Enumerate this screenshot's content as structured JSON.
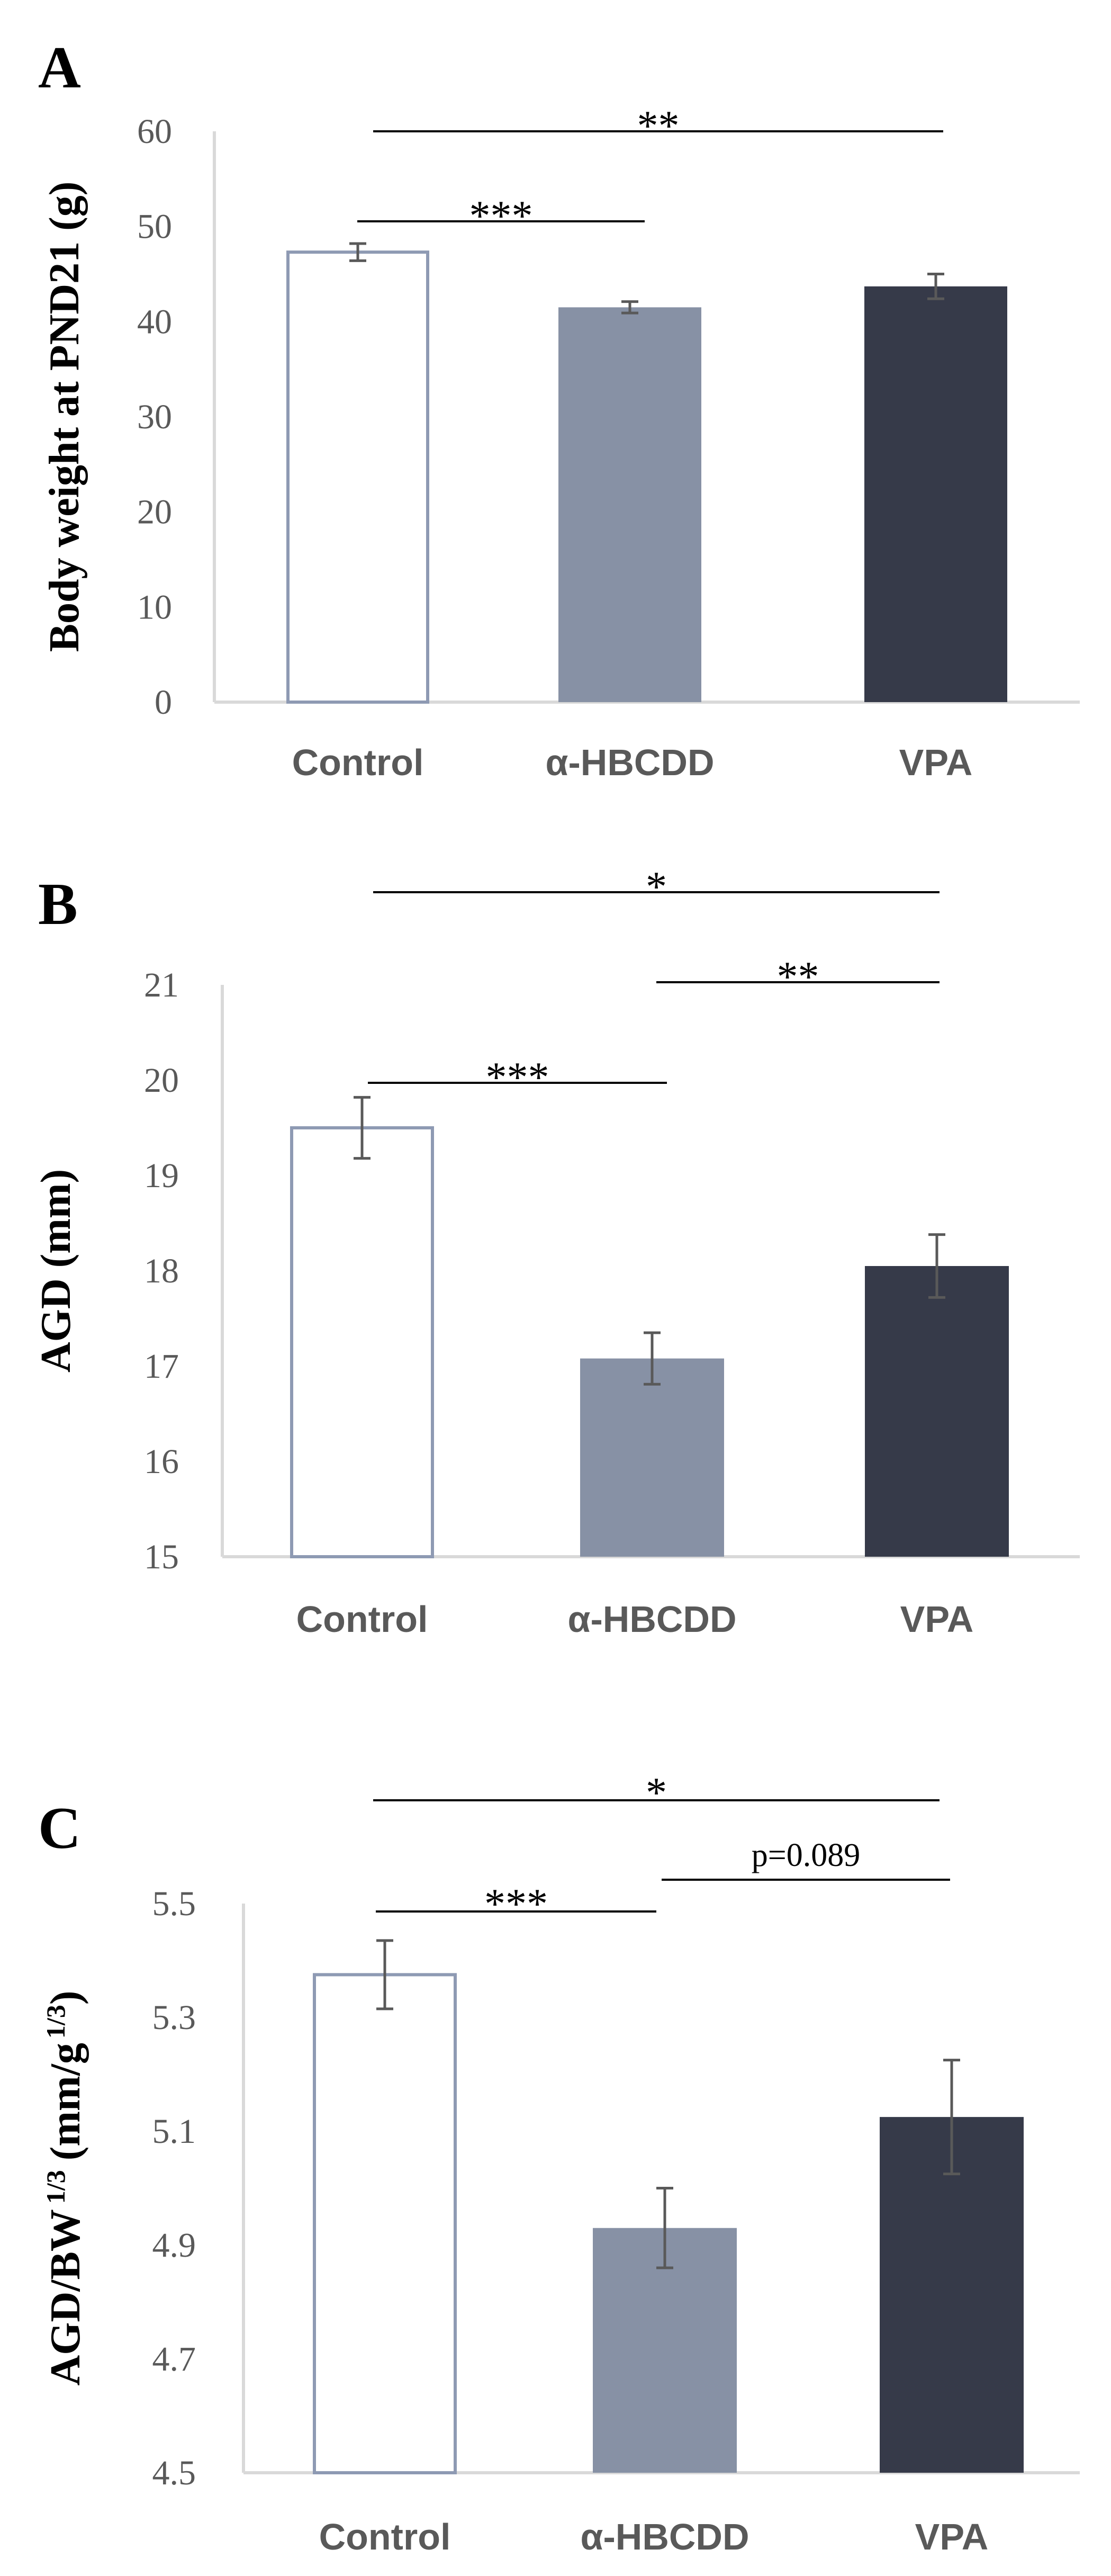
{
  "chart_data": [
    {
      "panel": "A",
      "type": "bar",
      "ylabel": "Body weight at PND21 (g)",
      "categories": [
        "Control",
        "α-HBCDD",
        "VPA"
      ],
      "values": [
        47.3,
        41.5,
        43.7
      ],
      "errors": [
        0.9,
        0.6,
        1.3
      ],
      "ylim": [
        0,
        60
      ],
      "yticks": [
        "0",
        "10",
        "20",
        "30",
        "40",
        "50",
        "60"
      ],
      "significance": [
        {
          "from": 0,
          "to": 2,
          "label": "**"
        },
        {
          "from": 0,
          "to": 1,
          "label": "***"
        }
      ]
    },
    {
      "panel": "B",
      "type": "bar",
      "ylabel": "AGD (mm)",
      "categories": [
        "Control",
        "α-HBCDD",
        "VPA"
      ],
      "values": [
        19.5,
        17.08,
        18.05
      ],
      "errors": [
        0.32,
        0.27,
        0.33
      ],
      "ylim": [
        15,
        21
      ],
      "yticks": [
        "15",
        "16",
        "17",
        "18",
        "19",
        "20",
        "21"
      ],
      "significance": [
        {
          "from": 0,
          "to": 2,
          "label": "*"
        },
        {
          "from": 1,
          "to": 2,
          "label": "**"
        },
        {
          "from": 0,
          "to": 1,
          "label": "***"
        }
      ]
    },
    {
      "panel": "C",
      "type": "bar",
      "ylabel": "AGD/BW",
      "ylabel_sup": "1/3",
      "ylabel_unit": "(mm/g",
      "ylabel_unit_sup": "1/3",
      "ylabel_close": ")",
      "categories": [
        "Control",
        "α-HBCDD",
        "VPA"
      ],
      "values": [
        5.375,
        4.93,
        5.125
      ],
      "errors": [
        0.06,
        0.07,
        0.1
      ],
      "ylim": [
        4.5,
        5.5
      ],
      "yticks": [
        "4.5",
        "4.7",
        "4.9",
        "5.1",
        "5.3",
        "5.5"
      ],
      "significance": [
        {
          "from": 0,
          "to": 2,
          "label": "*"
        },
        {
          "from": 1,
          "to": 2,
          "label": "p=0.089"
        },
        {
          "from": 0,
          "to": 1,
          "label": "***"
        }
      ]
    }
  ],
  "colors": {
    "control_outline": "#8e9ab3",
    "hbcdd_fill": "#8791a5",
    "vpa_fill": "#363a49",
    "axis": "#d9d9d9",
    "error_bar": "#595959",
    "sig_line": "#000000"
  }
}
